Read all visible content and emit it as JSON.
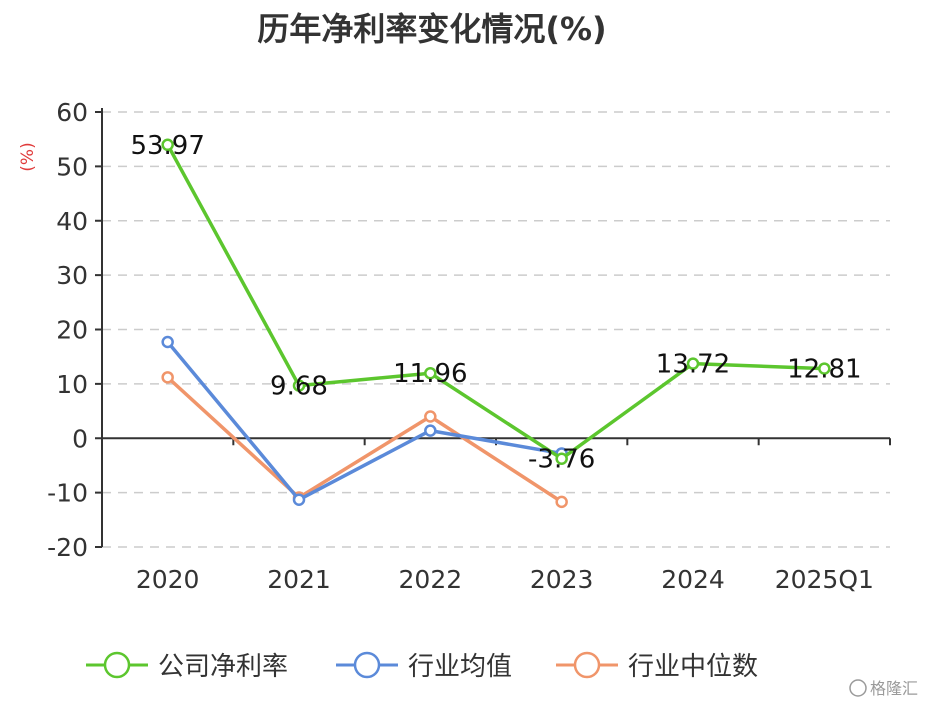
{
  "chart_data": {
    "type": "line",
    "title": "历年净利率变化情况(%)",
    "ylabel": "(%)",
    "categories": [
      "2020",
      "2021",
      "2022",
      "2023",
      "2024",
      "2025Q1"
    ],
    "ylim": [
      -20,
      60
    ],
    "yticks": [
      "60",
      "50",
      "40",
      "30",
      "20",
      "10",
      "0",
      "-10",
      "-20"
    ],
    "grid": true,
    "legend_position": "bottom",
    "series": [
      {
        "name": "公司净利率",
        "color": "#5cc62e",
        "values": [
          53.97,
          9.68,
          11.96,
          -3.76,
          13.72,
          12.81
        ],
        "labels": [
          "53.97",
          "9.68",
          "11.96",
          "-3.76",
          "13.72",
          "12.81"
        ]
      },
      {
        "name": "行业均值",
        "color": "#5b8ad9",
        "values": [
          17.7,
          -11.3,
          1.4,
          -2.8,
          null,
          null
        ]
      },
      {
        "name": "行业中位数",
        "color": "#f0956a",
        "values": [
          11.2,
          -10.9,
          4.0,
          -11.7,
          null,
          null
        ]
      }
    ]
  },
  "watermark": "格隆汇"
}
